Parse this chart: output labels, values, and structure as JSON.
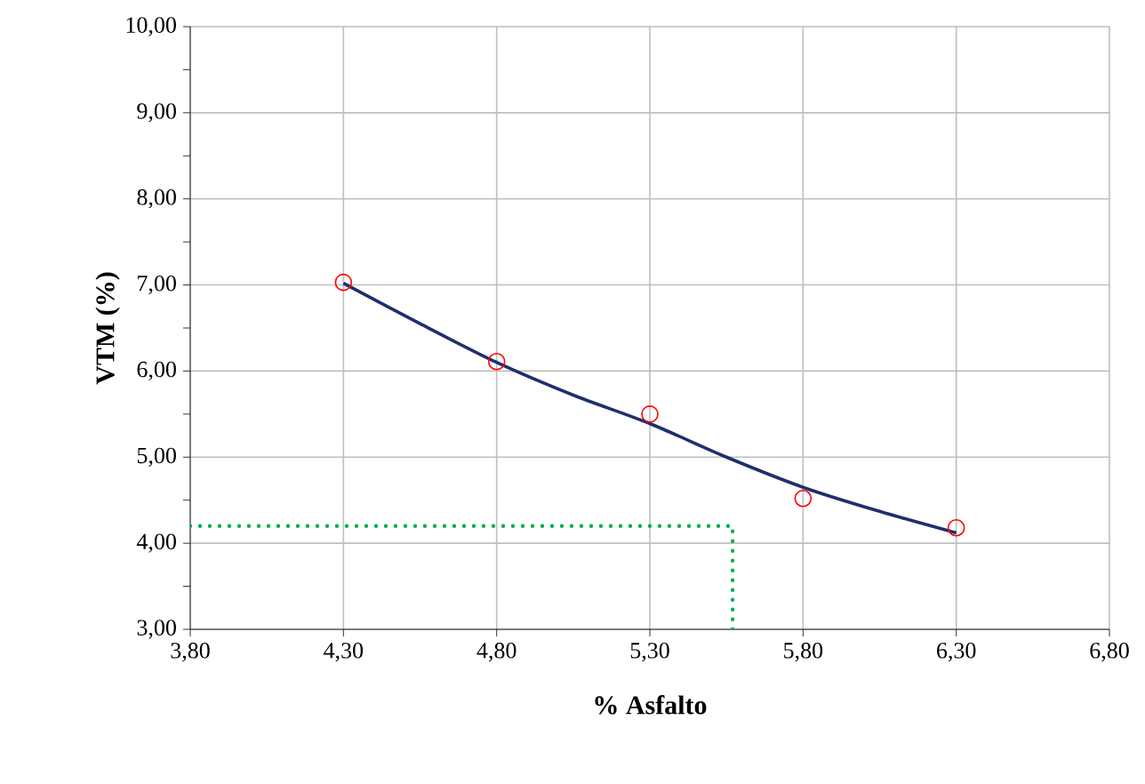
{
  "chart_data": {
    "type": "scatter",
    "xlabel": "% Asfalto",
    "ylabel": "VTM (%)",
    "xlim": [
      3.8,
      6.8
    ],
    "ylim": [
      3.0,
      10.0
    ],
    "xticks": [
      {
        "value": 3.8,
        "label": "3,80"
      },
      {
        "value": 4.3,
        "label": "4,30"
      },
      {
        "value": 4.8,
        "label": "4,80"
      },
      {
        "value": 5.3,
        "label": "5,30"
      },
      {
        "value": 5.8,
        "label": "5,80"
      },
      {
        "value": 6.3,
        "label": "6,30"
      },
      {
        "value": 6.8,
        "label": "6,80"
      }
    ],
    "yticks": [
      {
        "value": 3,
        "label": "3,00"
      },
      {
        "value": 4,
        "label": "4,00"
      },
      {
        "value": 5,
        "label": "5,00"
      },
      {
        "value": 6,
        "label": "6,00"
      },
      {
        "value": 7,
        "label": "7,00"
      },
      {
        "value": 8,
        "label": "8,00"
      },
      {
        "value": 9,
        "label": "9,00"
      },
      {
        "value": 10,
        "label": "10,00"
      }
    ],
    "grid": true,
    "legend": false,
    "series": [
      {
        "type": "line",
        "color": "#1f2f6e",
        "marker": "none",
        "line_style": "solid",
        "x": [
          4.3,
          4.55,
          4.8,
          5.05,
          5.3,
          5.55,
          5.8,
          6.05,
          6.3
        ],
        "values": [
          7.02,
          6.55,
          6.1,
          5.72,
          5.39,
          5.0,
          4.65,
          4.37,
          4.12
        ]
      },
      {
        "color": "#ff0000",
        "marker": "circle",
        "x": [
          4.3,
          4.8,
          5.3,
          5.8,
          6.3
        ],
        "values": [
          7.03,
          6.11,
          5.5,
          4.52,
          4.18
        ]
      },
      {
        "type": "line",
        "color": "#00b050",
        "marker": "none",
        "line_style": "dotted",
        "x": [
          3.8,
          5.57,
          5.57
        ],
        "values": [
          4.2,
          4.2,
          3.0
        ]
      }
    ]
  }
}
